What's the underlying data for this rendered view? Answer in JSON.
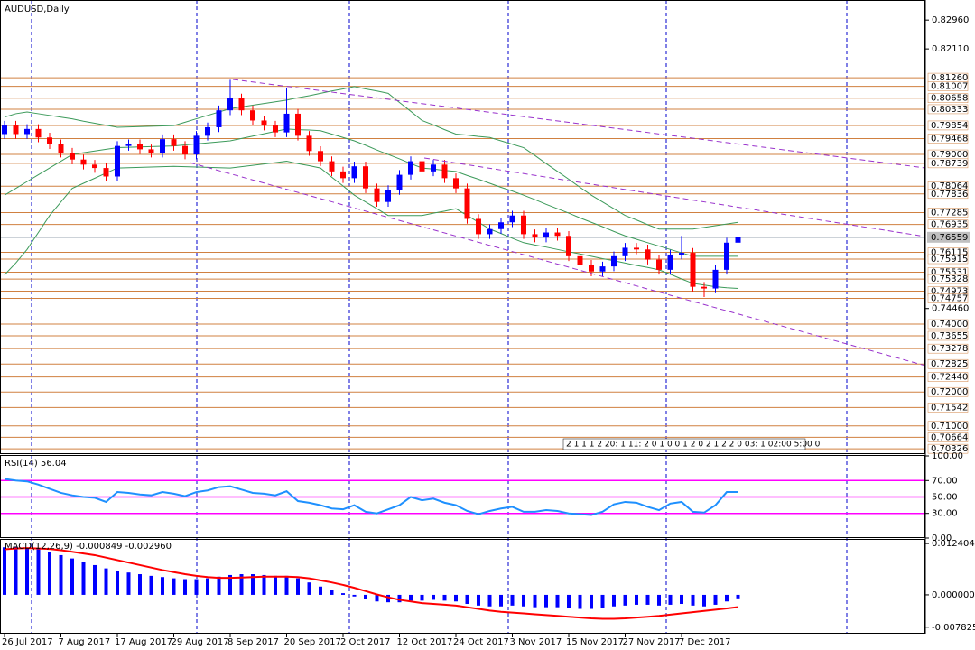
{
  "chart_data": [
    {
      "type": "candlestick",
      "title": "AUDUSD,Daily",
      "categories": [
        "26 Jul 2017",
        null,
        null,
        null,
        null,
        "7 Aug 2017",
        null,
        null,
        null,
        null,
        "17 Aug 2017",
        null,
        null,
        null,
        null,
        "29 Aug 2017",
        null,
        null,
        null,
        null,
        "8 Sep 2017",
        null,
        null,
        null,
        null,
        "20 Sep 2017",
        null,
        null,
        null,
        null,
        "2 Oct 2017",
        null,
        null,
        null,
        null,
        "12 Oct 2017",
        null,
        null,
        null,
        null,
        "24 Oct 2017",
        null,
        null,
        null,
        null,
        "3 Nov 2017",
        null,
        null,
        null,
        null,
        "15 Nov 2017",
        null,
        null,
        null,
        null,
        "27 Nov 2017",
        null,
        null,
        null,
        null,
        "7 Dec 2017",
        null,
        null,
        null,
        null,
        null
      ],
      "open": [
        0.796,
        0.7985,
        0.796,
        0.7975,
        0.795,
        0.793,
        0.7905,
        0.7885,
        0.787,
        0.786,
        0.7835,
        0.7925,
        0.793,
        0.7915,
        0.7905,
        0.7945,
        0.7925,
        0.79,
        0.7955,
        0.798,
        0.803,
        0.8065,
        0.803,
        0.8,
        0.7985,
        0.7965,
        0.802,
        0.7955,
        0.791,
        0.788,
        0.785,
        0.783,
        0.7865,
        0.78,
        0.776,
        0.7795,
        0.784,
        0.788,
        0.785,
        0.787,
        0.783,
        0.78,
        0.771,
        0.7665,
        0.768,
        0.77,
        0.772,
        0.7665,
        0.7655,
        0.767,
        0.766,
        0.76,
        0.7575,
        0.7555,
        0.757,
        0.76,
        0.7625,
        0.762,
        0.759,
        0.756,
        0.7605,
        0.761,
        0.751,
        0.7505,
        0.756,
        0.764
      ],
      "high": [
        0.7999,
        0.7999,
        0.7989,
        0.7989,
        0.7964,
        0.7944,
        0.7919,
        0.7899,
        0.7884,
        0.7874,
        0.7939,
        0.7944,
        0.7944,
        0.7929,
        0.7959,
        0.7959,
        0.7939,
        0.7969,
        0.7994,
        0.8044,
        0.812,
        0.8079,
        0.8044,
        0.8014,
        0.7999,
        0.8095,
        0.8034,
        0.7969,
        0.7924,
        0.7894,
        0.7864,
        0.7879,
        0.7879,
        0.7814,
        0.7809,
        0.7854,
        0.7894,
        0.7894,
        0.7884,
        0.7884,
        0.7844,
        0.7814,
        0.7724,
        0.7694,
        0.7714,
        0.7734,
        0.7734,
        0.7679,
        0.7684,
        0.7684,
        0.7674,
        0.7614,
        0.7589,
        0.7584,
        0.7614,
        0.7639,
        0.7639,
        0.7634,
        0.7604,
        0.7619,
        0.766,
        0.7624,
        0.7524,
        0.7574,
        0.7654,
        0.769
      ],
      "low": [
        0.7946,
        0.7946,
        0.7946,
        0.7936,
        0.7916,
        0.7891,
        0.7871,
        0.7856,
        0.7846,
        0.7821,
        0.7821,
        0.7911,
        0.7901,
        0.7891,
        0.7891,
        0.7911,
        0.7886,
        0.7886,
        0.7941,
        0.7966,
        0.8016,
        0.8016,
        0.7986,
        0.7971,
        0.7951,
        0.7951,
        0.7941,
        0.7896,
        0.7866,
        0.7836,
        0.7816,
        0.7816,
        0.7786,
        0.7746,
        0.7746,
        0.7781,
        0.7826,
        0.7836,
        0.7836,
        0.7816,
        0.7786,
        0.7696,
        0.7651,
        0.7651,
        0.7666,
        0.7686,
        0.7651,
        0.7641,
        0.7641,
        0.7646,
        0.7586,
        0.7561,
        0.7541,
        0.7541,
        0.7556,
        0.7586,
        0.7606,
        0.7576,
        0.7546,
        0.7546,
        0.7591,
        0.7496,
        0.748,
        0.7491,
        0.7546,
        0.7626
      ],
      "close": [
        0.7985,
        0.796,
        0.7975,
        0.795,
        0.793,
        0.7905,
        0.7885,
        0.787,
        0.786,
        0.7835,
        0.7925,
        0.793,
        0.7915,
        0.7905,
        0.7945,
        0.7925,
        0.79,
        0.7955,
        0.798,
        0.803,
        0.8065,
        0.803,
        0.8,
        0.7985,
        0.7965,
        0.802,
        0.7955,
        0.791,
        0.788,
        0.785,
        0.783,
        0.7865,
        0.78,
        0.776,
        0.7795,
        0.784,
        0.788,
        0.785,
        0.787,
        0.783,
        0.78,
        0.771,
        0.7665,
        0.768,
        0.77,
        0.772,
        0.7665,
        0.7655,
        0.767,
        0.766,
        0.76,
        0.7575,
        0.7555,
        0.757,
        0.76,
        0.7625,
        0.762,
        0.759,
        0.756,
        0.7605,
        0.761,
        0.751,
        0.7505,
        0.756,
        0.764,
        0.7656
      ],
      "up_color": "#0000ff",
      "down_color": "#ff0000",
      "bollinger": {
        "color": "#3c9a5a",
        "upper": [
          0.801,
          0.802,
          0.8025,
          0.802,
          0.8015,
          0.801,
          0.8005,
          0.7998,
          0.7992,
          0.7986,
          0.798,
          0.7981,
          0.7982,
          0.7983,
          0.7984,
          0.7985,
          0.7995,
          0.8005,
          0.8015,
          0.8025,
          0.8035,
          0.804,
          0.8045,
          0.805,
          0.8055,
          0.806,
          0.8067,
          0.8073,
          0.808,
          0.8087,
          0.8093,
          0.81,
          0.8093,
          0.8087,
          0.808,
          0.8053,
          0.8027,
          0.8,
          0.7987,
          0.7973,
          0.796,
          0.7957,
          0.7953,
          0.795,
          0.794,
          0.793,
          0.792,
          0.7897,
          0.7873,
          0.785,
          0.7827,
          0.7803,
          0.778,
          0.776,
          0.774,
          0.772,
          0.7707,
          0.7693,
          0.768,
          0.768,
          0.768,
          0.768,
          0.7685,
          0.769,
          0.7695,
          0.77
        ],
        "middle": [
          0.778,
          0.78,
          0.782,
          0.784,
          0.786,
          0.788,
          0.79,
          0.7905,
          0.791,
          0.7915,
          0.792,
          0.7921,
          0.7922,
          0.7923,
          0.7924,
          0.7925,
          0.7928,
          0.7931,
          0.7934,
          0.7937,
          0.794,
          0.7947,
          0.7954,
          0.7961,
          0.7968,
          0.7975,
          0.7973,
          0.7972,
          0.797,
          0.796,
          0.795,
          0.794,
          0.7927,
          0.7913,
          0.79,
          0.7887,
          0.7873,
          0.786,
          0.7857,
          0.7853,
          0.785,
          0.7838,
          0.7827,
          0.7815,
          0.7803,
          0.7792,
          0.778,
          0.7767,
          0.7753,
          0.774,
          0.7727,
          0.7713,
          0.77,
          0.7687,
          0.7673,
          0.766,
          0.765,
          0.764,
          0.763,
          0.762,
          0.761,
          0.76,
          0.76,
          0.76,
          0.76,
          0.76
        ],
        "lower": [
          0.7545,
          0.758,
          0.762,
          0.767,
          0.772,
          0.776,
          0.78,
          0.7815,
          0.783,
          0.7845,
          0.786,
          0.7861,
          0.7862,
          0.7863,
          0.7864,
          0.7865,
          0.7864,
          0.7863,
          0.7862,
          0.7861,
          0.786,
          0.7864,
          0.7868,
          0.7872,
          0.7876,
          0.788,
          0.7873,
          0.7867,
          0.786,
          0.7833,
          0.7807,
          0.778,
          0.776,
          0.774,
          0.772,
          0.772,
          0.772,
          0.772,
          0.7727,
          0.7733,
          0.774,
          0.772,
          0.77,
          0.768,
          0.7667,
          0.7653,
          0.764,
          0.7633,
          0.7627,
          0.762,
          0.7613,
          0.7607,
          0.76,
          0.7593,
          0.7587,
          0.758,
          0.7573,
          0.7567,
          0.756,
          0.7547,
          0.7533,
          0.752,
          0.7515,
          0.751,
          0.7507,
          0.7505
        ]
      },
      "ylim": [
        0.7017,
        0.8355
      ],
      "yticks": [
        {
          "value": 0.8296,
          "label": "0.82960"
        },
        {
          "value": 0.8211,
          "label": "0.82110"
        },
        {
          "value": 0.7446,
          "label": "0.74460"
        }
      ],
      "level_color": "#d08040",
      "levels": [
        {
          "value": 0.8126,
          "label": "0.81260"
        },
        {
          "value": 0.81007,
          "label": "0.81007"
        },
        {
          "value": 0.80658,
          "label": "0.80658"
        },
        {
          "value": 0.80333,
          "label": "0.80333"
        },
        {
          "value": 0.79854,
          "label": "0.79854"
        },
        {
          "value": 0.79468,
          "label": "0.79468"
        },
        {
          "value": 0.79,
          "label": "0.79000"
        },
        {
          "value": 0.78739,
          "label": "0.78739"
        },
        {
          "value": 0.78064,
          "label": "0.78064"
        },
        {
          "value": 0.77836,
          "label": "0.77836"
        },
        {
          "value": 0.77285,
          "label": "0.77285"
        },
        {
          "value": 0.76935,
          "label": "0.76935"
        },
        {
          "value": 0.76115,
          "label": "0.76115"
        },
        {
          "value": 0.75915,
          "label": "0.75915"
        },
        {
          "value": 0.75531,
          "label": "0.75531"
        },
        {
          "value": 0.75328,
          "label": "0.75328"
        },
        {
          "value": 0.74973,
          "label": "0.74973"
        },
        {
          "value": 0.74757,
          "label": "0.74757"
        },
        {
          "value": 0.74,
          "label": "0.74000"
        },
        {
          "value": 0.73655,
          "label": "0.73655"
        },
        {
          "value": 0.73278,
          "label": "0.73278"
        },
        {
          "value": 0.72825,
          "label": "0.72825"
        },
        {
          "value": 0.7244,
          "label": "0.72440"
        },
        {
          "value": 0.72,
          "label": "0.72000"
        },
        {
          "value": 0.71542,
          "label": "0.71542"
        },
        {
          "value": 0.71,
          "label": "0.71000"
        },
        {
          "value": 0.70664,
          "label": "0.70664"
        },
        {
          "value": 0.70326,
          "label": "0.70326"
        }
      ],
      "last_price": {
        "value": 0.76559,
        "label": "0.76559"
      },
      "overlay_text": "2 1 1 1 2 20: 1 11: 2 0 1 0 0 1 2 0 2 1 2 2 0 03: 1 02:00 5:00 0"
    },
    {
      "type": "line",
      "title": "RSI(14) 56.04",
      "color": "#1e90ff",
      "values": [
        72,
        70,
        69,
        65,
        60,
        55,
        52,
        50,
        49,
        44,
        56,
        55,
        53,
        52,
        56,
        54,
        51,
        56,
        58,
        62,
        63,
        59,
        55,
        54,
        52,
        57,
        45,
        43,
        40,
        36,
        35,
        40,
        32,
        30,
        35,
        40,
        50,
        46,
        48,
        43,
        40,
        33,
        29,
        33,
        36,
        38,
        32,
        32,
        34,
        33,
        30,
        29,
        28,
        32,
        41,
        44,
        43,
        38,
        34,
        42,
        44,
        32,
        31,
        40,
        56,
        56.04
      ],
      "ylim": [
        0,
        100
      ],
      "yticks": [
        {
          "value": 100,
          "label": "100.00"
        },
        {
          "value": 70,
          "label": "70.00"
        },
        {
          "value": 50,
          "label": "50.00"
        },
        {
          "value": 30,
          "label": "30.00"
        },
        {
          "value": 0,
          "label": "0.00"
        }
      ],
      "levels": [
        70,
        50,
        30
      ],
      "level_color": "#ff00ff"
    },
    {
      "type": "macd",
      "title": "MACD(12,26,9) -0.000849 -0.002960",
      "histogram": {
        "color": "#0000ff",
        "values": [
          0.0115,
          0.0116,
          0.0114,
          0.011,
          0.0104,
          0.0096,
          0.0088,
          0.008,
          0.0072,
          0.0064,
          0.0058,
          0.0054,
          0.005,
          0.0046,
          0.0043,
          0.004,
          0.0038,
          0.0038,
          0.004,
          0.0044,
          0.0048,
          0.005,
          0.005,
          0.0048,
          0.0046,
          0.0046,
          0.004,
          0.003,
          0.002,
          0.0012,
          0.0004,
          -0.0004,
          -0.001,
          -0.0016,
          -0.0018,
          -0.0018,
          -0.0014,
          -0.0014,
          -0.0012,
          -0.0014,
          -0.0016,
          -0.0022,
          -0.0026,
          -0.0028,
          -0.0028,
          -0.0026,
          -0.0028,
          -0.003,
          -0.003,
          -0.003,
          -0.0032,
          -0.0034,
          -0.0034,
          -0.0032,
          -0.0028,
          -0.0026,
          -0.0024,
          -0.0024,
          -0.0026,
          -0.0024,
          -0.0022,
          -0.0026,
          -0.0028,
          -0.0024,
          -0.0016,
          -0.000849
        ]
      },
      "signal": {
        "color": "#ff0000",
        "values": [
          0.011,
          0.0112,
          0.0113,
          0.0112,
          0.0111,
          0.0108,
          0.0104,
          0.01,
          0.0096,
          0.009,
          0.0084,
          0.0078,
          0.0072,
          0.0066,
          0.006,
          0.0055,
          0.005,
          0.0046,
          0.0043,
          0.0041,
          0.0041,
          0.0042,
          0.0043,
          0.0044,
          0.0044,
          0.0044,
          0.0043,
          0.004,
          0.0035,
          0.003,
          0.0024,
          0.0017,
          0.0009,
          0.0001,
          -0.0006,
          -0.0012,
          -0.0016,
          -0.002,
          -0.0022,
          -0.0024,
          -0.0026,
          -0.003,
          -0.0034,
          -0.0038,
          -0.0041,
          -0.0043,
          -0.0045,
          -0.0047,
          -0.0049,
          -0.0051,
          -0.0053,
          -0.0055,
          -0.0057,
          -0.0058,
          -0.0058,
          -0.0057,
          -0.0055,
          -0.0053,
          -0.0051,
          -0.0048,
          -0.0045,
          -0.0042,
          -0.0039,
          -0.0036,
          -0.0033,
          -0.00296
        ]
      },
      "ylim": [
        -0.0094,
        0.0133
      ],
      "yticks": [
        {
          "value": 0.012404,
          "label": "0.012404"
        },
        {
          "value": 0,
          "label": "0.000000"
        },
        {
          "value": -0.007825,
          "label": "-0.007825"
        }
      ]
    }
  ]
}
